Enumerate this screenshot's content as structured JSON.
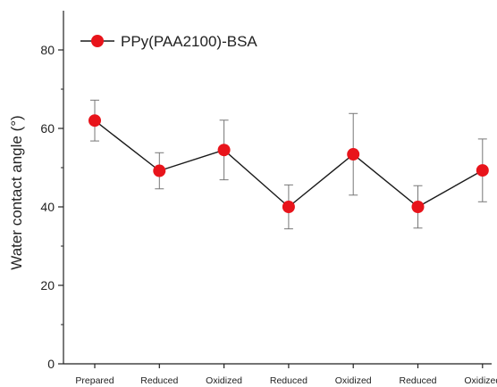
{
  "chart_data": {
    "type": "line",
    "categories": [
      "Prepared",
      "Reduced",
      "Oxidized",
      "Reduced",
      "Oxidized",
      "Reduced",
      "Oxidized"
    ],
    "series": [
      {
        "name": "PPy(PAA2100)-BSA",
        "values": [
          62.0,
          49.2,
          54.5,
          40.0,
          53.4,
          40.0,
          49.3
        ],
        "error_low": [
          5.2,
          4.6,
          7.6,
          5.6,
          10.4,
          5.4,
          8.0
        ],
        "error_high": [
          5.2,
          4.6,
          7.6,
          5.6,
          10.4,
          5.4,
          8.0
        ],
        "color": "#e8141b",
        "line_color": "#1a1a1a"
      }
    ],
    "ylabel": "Water contact angle (°)",
    "xlabel": "",
    "ylim": [
      0,
      90
    ],
    "yticks": [
      0,
      20,
      40,
      60,
      80
    ],
    "grid": false,
    "legend_position": "top-left"
  }
}
